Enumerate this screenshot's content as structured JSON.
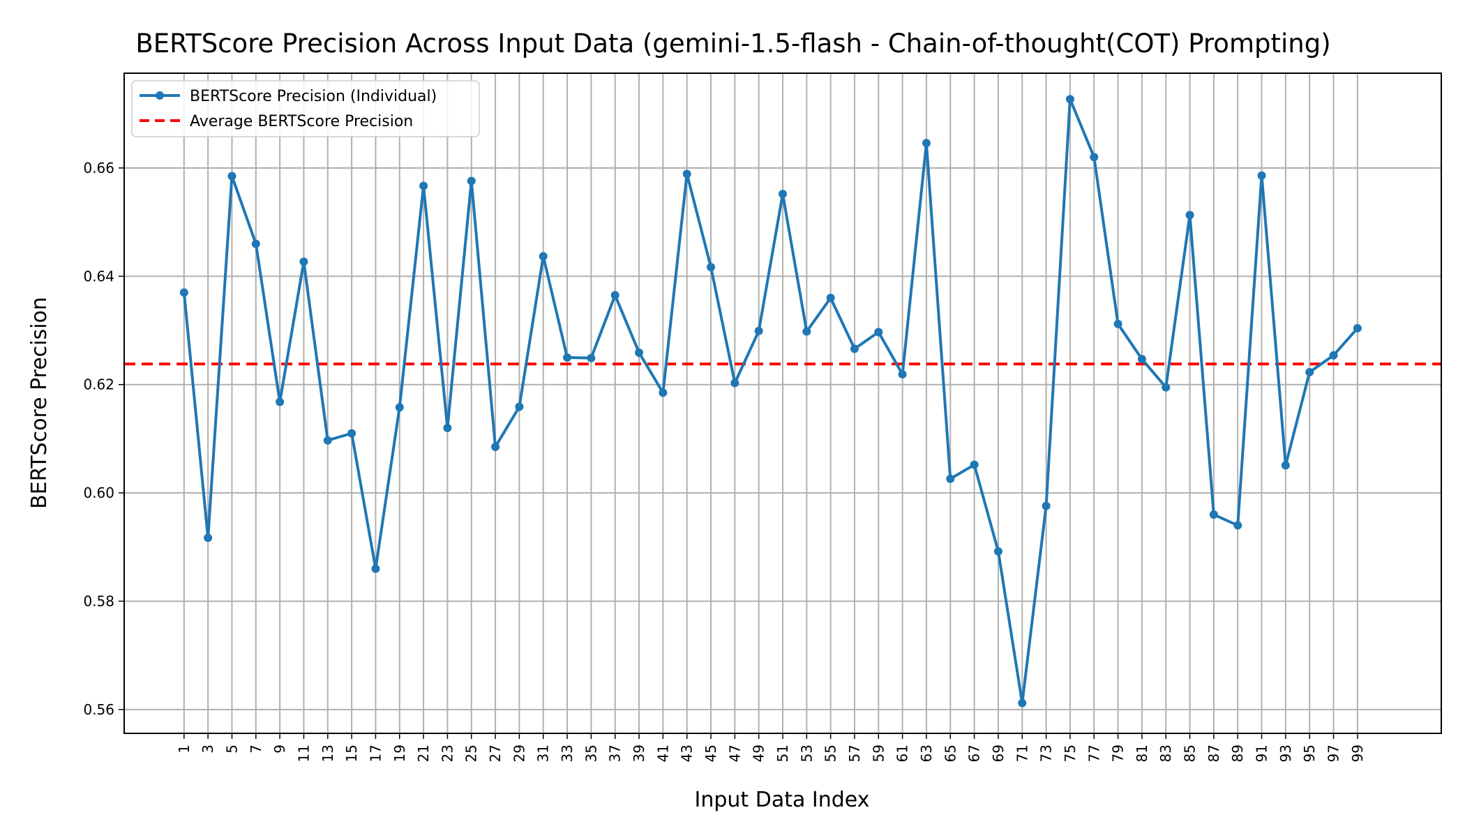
{
  "chart_data": {
    "type": "line",
    "title": "BERTScore Precision Across Input Data (gemini-1.5-flash - Chain-of-thought(COT) Prompting)",
    "xlabel": "Input Data Index",
    "ylabel": "BERTScore Precision",
    "x": [
      1,
      3,
      5,
      7,
      9,
      11,
      13,
      15,
      17,
      19,
      21,
      23,
      25,
      27,
      29,
      31,
      33,
      35,
      37,
      39,
      41,
      43,
      45,
      47,
      49,
      51,
      53,
      55,
      57,
      59,
      61,
      63,
      65,
      67,
      69,
      71,
      73,
      75,
      77,
      79,
      81,
      83,
      85,
      87,
      89,
      91,
      93,
      95,
      97,
      99
    ],
    "xticks": [
      "1",
      "3",
      "5",
      "7",
      "9",
      "11",
      "13",
      "15",
      "17",
      "19",
      "21",
      "23",
      "25",
      "27",
      "29",
      "31",
      "33",
      "35",
      "37",
      "39",
      "41",
      "43",
      "45",
      "47",
      "49",
      "51",
      "53",
      "55",
      "57",
      "59",
      "61",
      "63",
      "65",
      "67",
      "69",
      "71",
      "73",
      "75",
      "77",
      "79",
      "81",
      "83",
      "85",
      "87",
      "89",
      "91",
      "93",
      "95",
      "97",
      "99"
    ],
    "xlim": [
      -4,
      106
    ],
    "yticks": [
      "0.56",
      "0.58",
      "0.60",
      "0.62",
      "0.64",
      "0.66"
    ],
    "ytick_values": [
      0.56,
      0.58,
      0.6,
      0.62,
      0.64,
      0.66
    ],
    "ylim": [
      0.5556,
      0.6775
    ],
    "grid": true,
    "legend_position": "top-left",
    "series": [
      {
        "name": "BERTScore Precision (Individual)",
        "color": "#1f77b4",
        "style": "solid-with-markers",
        "values": [
          0.637,
          0.5917,
          0.6585,
          0.646,
          0.6168,
          0.6427,
          0.6097,
          0.611,
          0.586,
          0.6158,
          0.6567,
          0.612,
          0.6576,
          0.6085,
          0.6159,
          0.6437,
          0.625,
          0.6249,
          0.6365,
          0.6259,
          0.6185,
          0.6589,
          0.6417,
          0.6203,
          0.6299,
          0.6552,
          0.6298,
          0.636,
          0.6266,
          0.6297,
          0.6219,
          0.6646,
          0.6026,
          0.6052,
          0.5892,
          0.5612,
          0.5976,
          0.6727,
          0.662,
          0.6312,
          0.6247,
          0.6195,
          0.6513,
          0.596,
          0.594,
          0.6586,
          0.6051,
          0.6223,
          0.6254,
          0.6304
        ]
      },
      {
        "name": "Average BERTScore Precision",
        "color": "#ff0000",
        "style": "dashed",
        "value": 0.6238
      }
    ]
  }
}
